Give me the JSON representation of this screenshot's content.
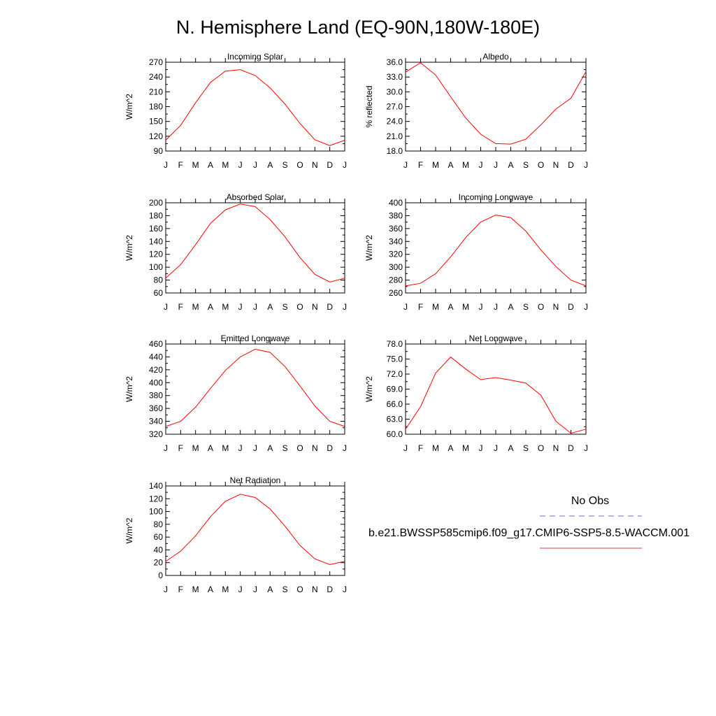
{
  "figure": {
    "title": "N. Hemisphere Land (EQ-90N,180W-180E)"
  },
  "legend": {
    "title": "No Obs",
    "entries": [
      {
        "label": "",
        "color": "#6b6bff",
        "style": "dashed"
      },
      {
        "label": "b.e21.BWSSP585cmip6.f09_g17.CMIP6-SSP5-8.5-WACCM.001",
        "color": "#e04040",
        "style": "solid"
      }
    ]
  },
  "chart_data": [
    {
      "type": "line",
      "title": "Incoming Solar",
      "ylabel": "W/m^2",
      "xlabel": "",
      "categories": [
        "J",
        "F",
        "M",
        "A",
        "M",
        "J",
        "J",
        "A",
        "S",
        "O",
        "N",
        "D",
        "J"
      ],
      "ylim": [
        90,
        270
      ],
      "yticks": [
        "90",
        "120",
        "150",
        "180",
        "210",
        "240",
        "270"
      ],
      "series": [
        {
          "color": "#ff0000",
          "values": [
            112,
            142,
            188,
            229,
            252,
            255,
            243,
            218,
            185,
            146,
            113,
            101,
            112
          ]
        }
      ]
    },
    {
      "type": "line",
      "title": "Albedo",
      "ylabel": "% reflected",
      "xlabel": "",
      "categories": [
        "J",
        "F",
        "M",
        "A",
        "M",
        "J",
        "J",
        "A",
        "S",
        "O",
        "N",
        "D",
        "J"
      ],
      "ylim": [
        18,
        36
      ],
      "yticks": [
        "18.0",
        "21.0",
        "24.0",
        "27.0",
        "30.0",
        "33.0",
        "36.0"
      ],
      "series": [
        {
          "color": "#ff0000",
          "values": [
            34.0,
            35.9,
            33.4,
            29.0,
            24.7,
            21.4,
            19.5,
            19.4,
            20.4,
            23.3,
            26.5,
            28.7,
            34.1
          ]
        }
      ]
    },
    {
      "type": "line",
      "title": "Absorbed Solar",
      "ylabel": "W/m^2",
      "xlabel": "",
      "categories": [
        "J",
        "F",
        "M",
        "A",
        "M",
        "J",
        "J",
        "A",
        "S",
        "O",
        "N",
        "D",
        "J"
      ],
      "ylim": [
        60,
        200
      ],
      "yticks": [
        "60",
        "80",
        "100",
        "120",
        "140",
        "160",
        "180",
        "200"
      ],
      "series": [
        {
          "color": "#ff0000",
          "values": [
            83,
            104,
            135,
            168,
            189,
            198,
            194,
            174,
            147,
            115,
            89,
            77,
            83
          ]
        }
      ]
    },
    {
      "type": "line",
      "title": "Incoming Longwave",
      "ylabel": "W/m^2",
      "xlabel": "",
      "categories": [
        "J",
        "F",
        "M",
        "A",
        "M",
        "J",
        "J",
        "A",
        "S",
        "O",
        "N",
        "D",
        "J"
      ],
      "ylim": [
        260,
        400
      ],
      "yticks": [
        "260",
        "280",
        "300",
        "320",
        "340",
        "360",
        "380",
        "400"
      ],
      "series": [
        {
          "color": "#ff0000",
          "values": [
            271,
            275,
            290,
            316,
            346,
            370,
            381,
            377,
            356,
            327,
            301,
            280,
            271
          ]
        }
      ]
    },
    {
      "type": "line",
      "title": "Emitted Longwave",
      "ylabel": "W/m^2",
      "xlabel": "",
      "categories": [
        "J",
        "F",
        "M",
        "A",
        "M",
        "J",
        "J",
        "A",
        "S",
        "O",
        "N",
        "D",
        "J"
      ],
      "ylim": [
        320,
        460
      ],
      "yticks": [
        "320",
        "340",
        "360",
        "380",
        "400",
        "420",
        "440",
        "460"
      ],
      "series": [
        {
          "color": "#ff0000",
          "values": [
            332,
            340,
            362,
            391,
            419,
            440,
            452,
            447,
            425,
            395,
            364,
            340,
            332
          ]
        }
      ]
    },
    {
      "type": "line",
      "title": "Net Longwave",
      "ylabel": "W/m^2",
      "xlabel": "",
      "categories": [
        "J",
        "F",
        "M",
        "A",
        "M",
        "J",
        "J",
        "A",
        "S",
        "O",
        "N",
        "D",
        "J"
      ],
      "ylim": [
        60,
        78
      ],
      "yticks": [
        "60.0",
        "63.0",
        "66.0",
        "69.0",
        "72.0",
        "75.0",
        "78.0"
      ],
      "series": [
        {
          "color": "#ff0000",
          "values": [
            61.0,
            65.5,
            72.2,
            75.4,
            73.0,
            70.9,
            71.3,
            70.8,
            70.2,
            67.8,
            62.6,
            60.2,
            61.0
          ]
        }
      ]
    },
    {
      "type": "line",
      "title": "Net Radiation",
      "ylabel": "W/m^2",
      "xlabel": "",
      "categories": [
        "J",
        "F",
        "M",
        "A",
        "M",
        "J",
        "J",
        "A",
        "S",
        "O",
        "N",
        "D",
        "J"
      ],
      "ylim": [
        0,
        140
      ],
      "yticks": [
        "0",
        "20",
        "40",
        "60",
        "80",
        "100",
        "120",
        "140"
      ],
      "series": [
        {
          "color": "#ff0000",
          "values": [
            22,
            38,
            62,
            92,
            116,
            127,
            122,
            104,
            77,
            47,
            26,
            17,
            22
          ]
        }
      ]
    }
  ]
}
